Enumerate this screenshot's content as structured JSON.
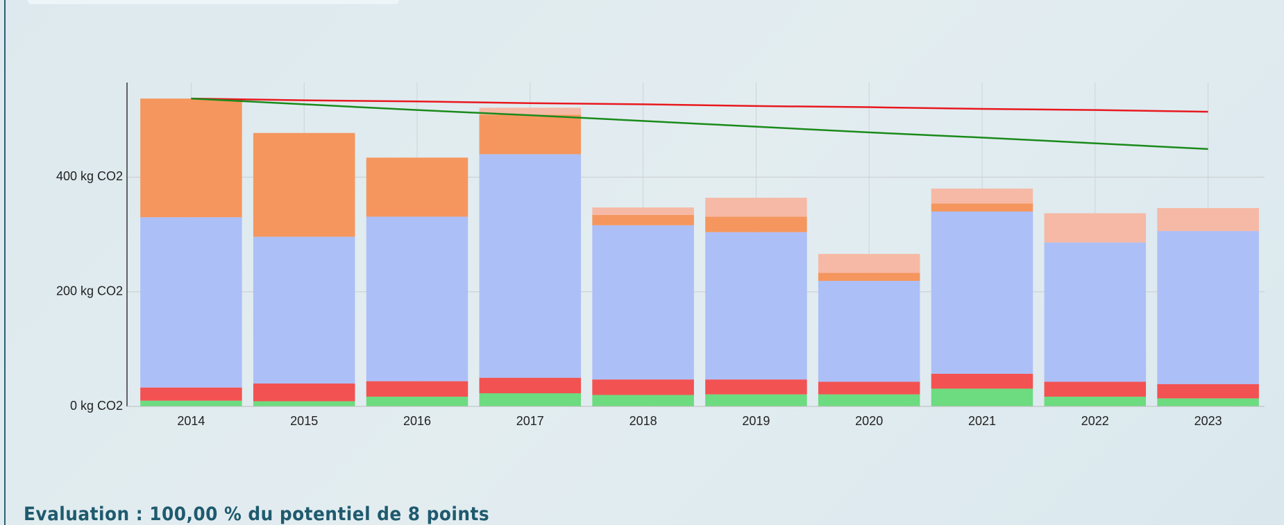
{
  "chart_data": {
    "type": "bar",
    "stacked": true,
    "categories": [
      "2014",
      "2015",
      "2016",
      "2017",
      "2018",
      "2019",
      "2020",
      "2021",
      "2022",
      "2023"
    ],
    "series": [
      {
        "type": "bar",
        "color": "#6ddb80",
        "values": [
          10,
          9,
          17,
          23,
          20,
          21,
          21,
          31,
          17,
          14
        ]
      },
      {
        "type": "bar",
        "color": "#f25252",
        "values": [
          23,
          31,
          27,
          27,
          27,
          26,
          22,
          26,
          26,
          25
        ]
      },
      {
        "type": "bar",
        "color": "#adbff7",
        "values": [
          297,
          256,
          287,
          390,
          269,
          257,
          176,
          283,
          243,
          267
        ]
      },
      {
        "type": "bar",
        "color": "#f5965e",
        "values": [
          207,
          181,
          103,
          69,
          18,
          27,
          14,
          14,
          0,
          0
        ]
      },
      {
        "type": "bar",
        "color": "#f6b9a5",
        "values": [
          0,
          0,
          0,
          12,
          13,
          33,
          33,
          26,
          51,
          40
        ]
      },
      {
        "type": "line",
        "color": "#e8181e",
        "values": [
          537,
          534,
          532,
          529,
          527,
          524,
          522,
          519,
          517,
          514
        ]
      },
      {
        "type": "line",
        "color": "#1a8a1a",
        "values": [
          537,
          527,
          517,
          508,
          498,
          488,
          478,
          469,
          459,
          449
        ]
      }
    ],
    "ylim": [
      0,
      565
    ],
    "yticks": [
      {
        "value": 0,
        "label": "0 kg CO2"
      },
      {
        "value": 200,
        "label": "200 kg CO2"
      },
      {
        "value": 400,
        "label": "400 kg CO2"
      }
    ],
    "grid": true
  },
  "caption": "Evaluation : 100,00 % du potentiel de 8 points"
}
